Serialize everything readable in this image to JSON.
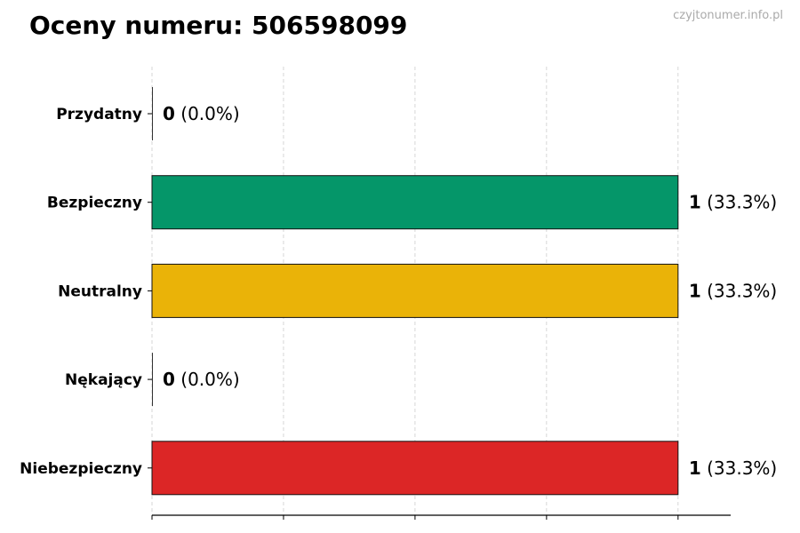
{
  "title": "Oceny numeru: 506598099",
  "watermark": "czyjtonumer.info.pl",
  "chart_data": {
    "type": "bar",
    "orientation": "horizontal",
    "categories": [
      "Przydatny",
      "Bezpieczny",
      "Neutralny",
      "Nękający",
      "Niebezpieczny"
    ],
    "values": [
      0,
      1,
      1,
      0,
      1
    ],
    "labels": [
      {
        "count": "0",
        "pct": "(0.0%)"
      },
      {
        "count": "1",
        "pct": "(33.3%)"
      },
      {
        "count": "1",
        "pct": "(33.3%)"
      },
      {
        "count": "0",
        "pct": "(0.0%)"
      },
      {
        "count": "1",
        "pct": "(33.3%)"
      }
    ],
    "colors": [
      "#3b82f6",
      "#059669",
      "#eab308",
      "#f97316",
      "#dc2626"
    ],
    "xlim": [
      0,
      1.1
    ],
    "xticks": [
      0,
      0.25,
      0.5,
      0.75,
      1
    ],
    "xtick_labels_visible": false,
    "grid": "x-dashed",
    "title": "Oceny numeru: 506598099",
    "xlabel": "",
    "ylabel": ""
  }
}
